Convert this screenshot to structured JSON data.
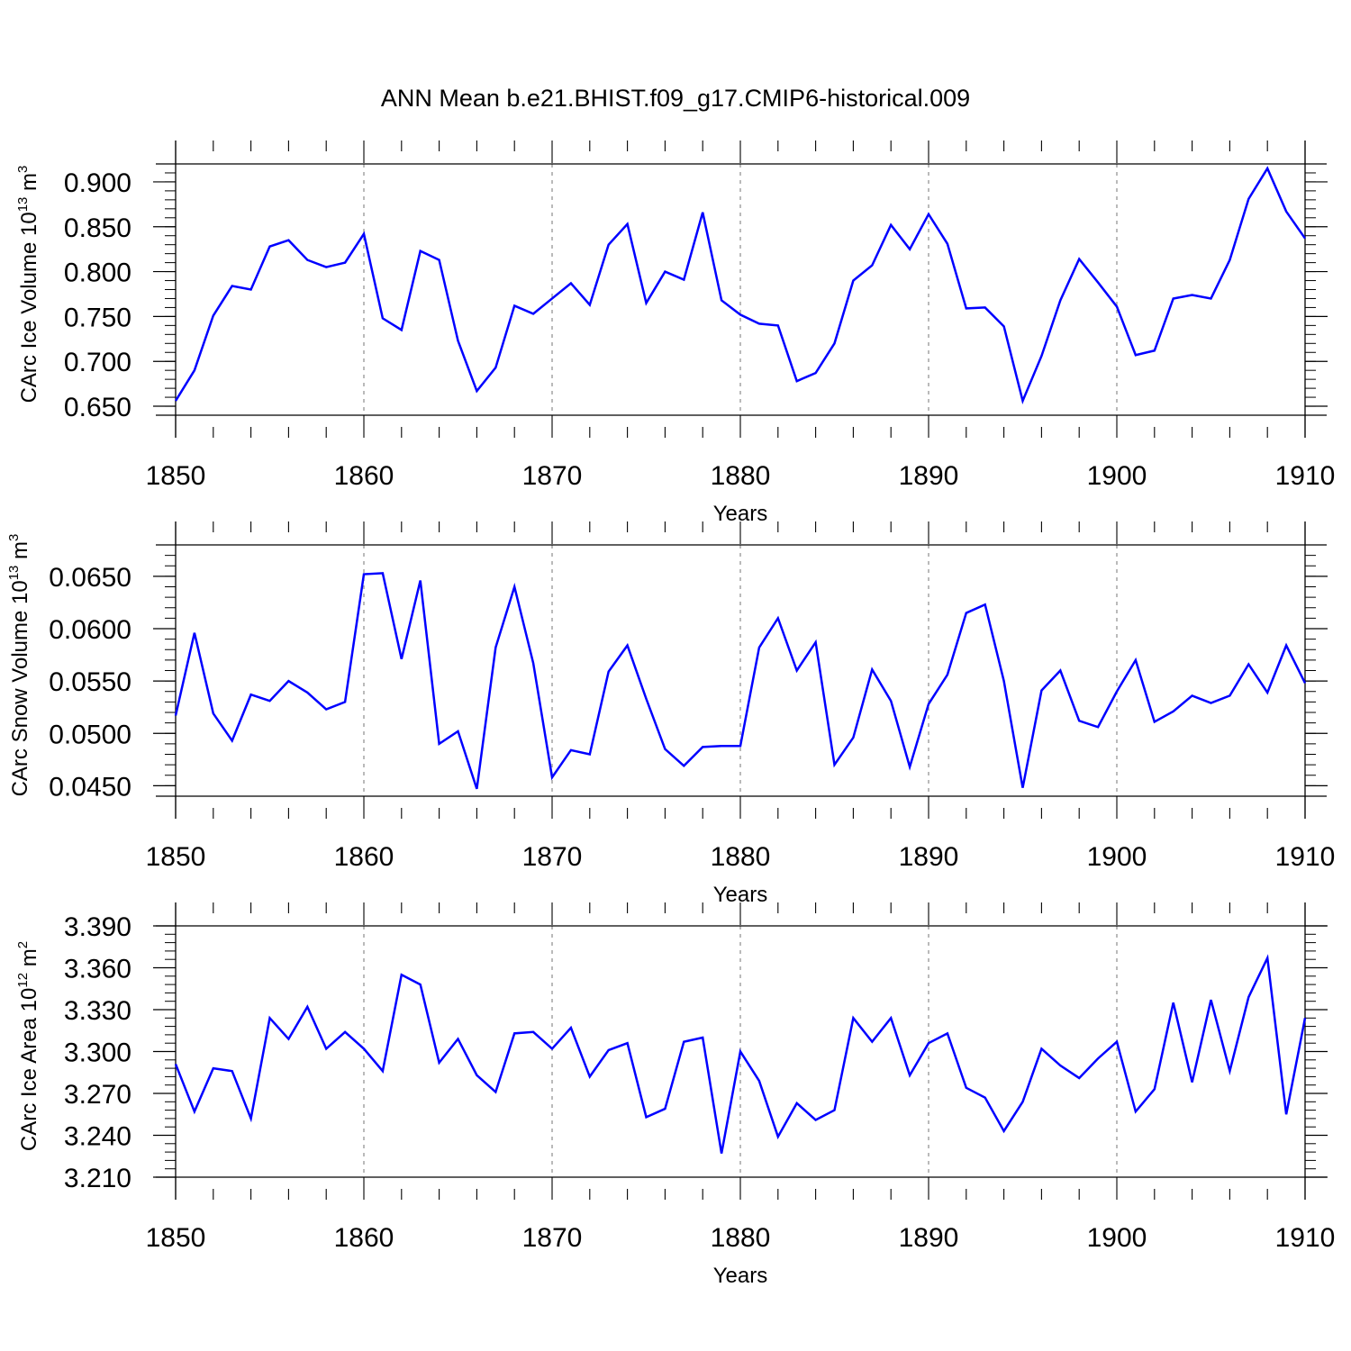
{
  "title": "ANN Mean b.e21.BHIST.f09_g17.CMIP6-historical.009",
  "colors": {
    "series": "#0000ff",
    "axis": "#000000",
    "grid": "#8c8c8c"
  },
  "chart_data": [
    {
      "type": "line",
      "xlabel": "Years",
      "ylabel_main": "CArc Ice Volume 10",
      "ylabel_exp": "13",
      "ylabel_unit": " m",
      "ylabel_unit_exp": "3",
      "xlim": [
        1850,
        1910
      ],
      "ylim": [
        0.64,
        0.92
      ],
      "yticks": [
        "0.650",
        "0.700",
        "0.750",
        "0.800",
        "0.850",
        "0.900"
      ],
      "xticks": [
        "1850",
        "1860",
        "1870",
        "1880",
        "1890",
        "1900",
        "1910"
      ],
      "x_start": 1850,
      "values": [
        0.656,
        0.69,
        0.751,
        0.784,
        0.78,
        0.828,
        0.835,
        0.813,
        0.805,
        0.81,
        0.842,
        0.748,
        0.735,
        0.823,
        0.813,
        0.723,
        0.667,
        0.693,
        0.762,
        0.753,
        0.77,
        0.787,
        0.763,
        0.83,
        0.853,
        0.765,
        0.8,
        0.791,
        0.866,
        0.768,
        0.752,
        0.742,
        0.74,
        0.678,
        0.687,
        0.72,
        0.79,
        0.807,
        0.852,
        0.825,
        0.864,
        0.831,
        0.759,
        0.76,
        0.739,
        0.656,
        0.706,
        0.768,
        0.814,
        0.788,
        0.761,
        0.707,
        0.712,
        0.77,
        0.774,
        0.77,
        0.813,
        0.881,
        0.915,
        0.867,
        0.837
      ]
    },
    {
      "type": "line",
      "xlabel": "Years",
      "ylabel_main": "CArc Snow Volume 10",
      "ylabel_exp": "13",
      "ylabel_unit": " m",
      "ylabel_unit_exp": "3",
      "xlim": [
        1850,
        1910
      ],
      "ylim": [
        0.044,
        0.068
      ],
      "yticks": [
        "0.0450",
        "0.0500",
        "0.0550",
        "0.0600",
        "0.0650"
      ],
      "xticks": [
        "1850",
        "1860",
        "1870",
        "1880",
        "1890",
        "1900",
        "1910"
      ],
      "x_start": 1850,
      "values": [
        0.0517,
        0.0596,
        0.0519,
        0.0493,
        0.0537,
        0.0531,
        0.055,
        0.0539,
        0.0523,
        0.053,
        0.0652,
        0.0653,
        0.0571,
        0.0646,
        0.049,
        0.0502,
        0.0447,
        0.0582,
        0.064,
        0.0567,
        0.0458,
        0.0484,
        0.048,
        0.0559,
        0.0584,
        0.0533,
        0.0485,
        0.0469,
        0.0487,
        0.0488,
        0.0488,
        0.0582,
        0.061,
        0.056,
        0.0587,
        0.047,
        0.0496,
        0.0561,
        0.0531,
        0.0468,
        0.0528,
        0.0556,
        0.0615,
        0.0623,
        0.055,
        0.0448,
        0.0541,
        0.056,
        0.0512,
        0.0506,
        0.054,
        0.057,
        0.0511,
        0.0521,
        0.0536,
        0.0529,
        0.0536,
        0.0566,
        0.0539,
        0.0584,
        0.0548
      ]
    },
    {
      "type": "line",
      "xlabel": "Years",
      "ylabel_main": "CArc Ice Area 10",
      "ylabel_exp": "12",
      "ylabel_unit": " m",
      "ylabel_unit_exp": "2",
      "xlim": [
        1850,
        1910
      ],
      "ylim": [
        3.21,
        3.39
      ],
      "yticks": [
        "3.210",
        "3.240",
        "3.270",
        "3.300",
        "3.330",
        "3.360",
        "3.390"
      ],
      "xticks": [
        "1850",
        "1860",
        "1870",
        "1880",
        "1890",
        "1900",
        "1910"
      ],
      "x_start": 1850,
      "values": [
        3.291,
        3.257,
        3.288,
        3.286,
        3.252,
        3.324,
        3.309,
        3.332,
        3.302,
        3.314,
        3.302,
        3.286,
        3.355,
        3.348,
        3.292,
        3.309,
        3.283,
        3.271,
        3.313,
        3.314,
        3.302,
        3.317,
        3.282,
        3.301,
        3.306,
        3.253,
        3.259,
        3.307,
        3.31,
        3.227,
        3.3,
        3.279,
        3.239,
        3.263,
        3.251,
        3.258,
        3.324,
        3.307,
        3.324,
        3.283,
        3.306,
        3.313,
        3.274,
        3.267,
        3.243,
        3.264,
        3.302,
        3.29,
        3.281,
        3.295,
        3.307,
        3.257,
        3.273,
        3.335,
        3.278,
        3.337,
        3.286,
        3.339,
        3.367,
        3.255,
        3.324
      ]
    }
  ]
}
